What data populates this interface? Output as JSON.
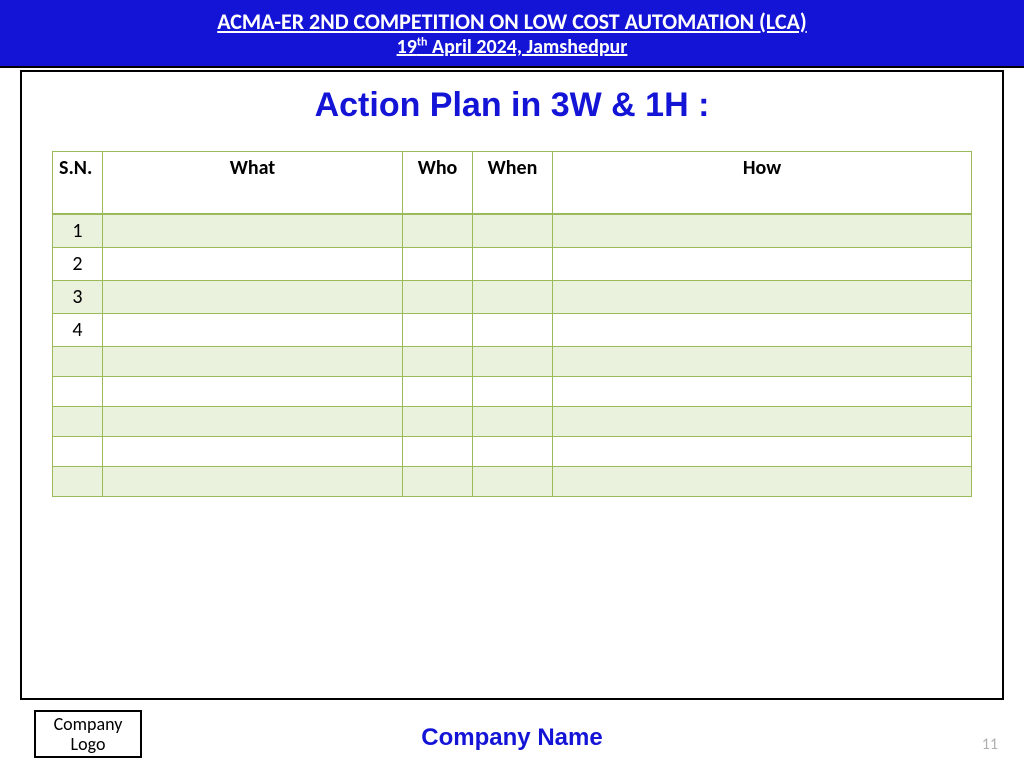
{
  "banner": {
    "title": "ACMA-ER 2ND COMPETITION ON LOW COST AUTOMATION (LCA)",
    "sub_pre": "19",
    "sub_sup": "th",
    "sub_post": " April 2024, Jamshedpur"
  },
  "heading": "Action Plan in 3W & 1H :",
  "table": {
    "columns": {
      "sn": "S.N.",
      "what": "What",
      "who": "Who",
      "when": "When",
      "how": "How"
    },
    "rows": [
      {
        "sn": "1",
        "what": "",
        "who": "",
        "when": "",
        "how": ""
      },
      {
        "sn": "2",
        "what": "",
        "who": "",
        "when": "",
        "how": ""
      },
      {
        "sn": "3",
        "what": "",
        "who": "",
        "when": "",
        "how": ""
      },
      {
        "sn": "4",
        "what": "",
        "who": "",
        "when": "",
        "how": ""
      },
      {
        "sn": "",
        "what": "",
        "who": "",
        "when": "",
        "how": ""
      },
      {
        "sn": "",
        "what": "",
        "who": "",
        "when": "",
        "how": ""
      },
      {
        "sn": "",
        "what": "",
        "who": "",
        "when": "",
        "how": ""
      },
      {
        "sn": "",
        "what": "",
        "who": "",
        "when": "",
        "how": ""
      },
      {
        "sn": "",
        "what": "",
        "who": "",
        "when": "",
        "how": ""
      }
    ]
  },
  "footer": {
    "logo_line1": "Company",
    "logo_line2": "Logo",
    "company": "Company Name",
    "page": "11"
  },
  "colors": {
    "banner_bg": "#1414d7",
    "accent_text": "#1414d7",
    "table_border": "#9bbb59",
    "row_odd_bg": "#eaf1dd",
    "row_even_bg": "#ffffff",
    "page_num": "#b0b0b0"
  }
}
